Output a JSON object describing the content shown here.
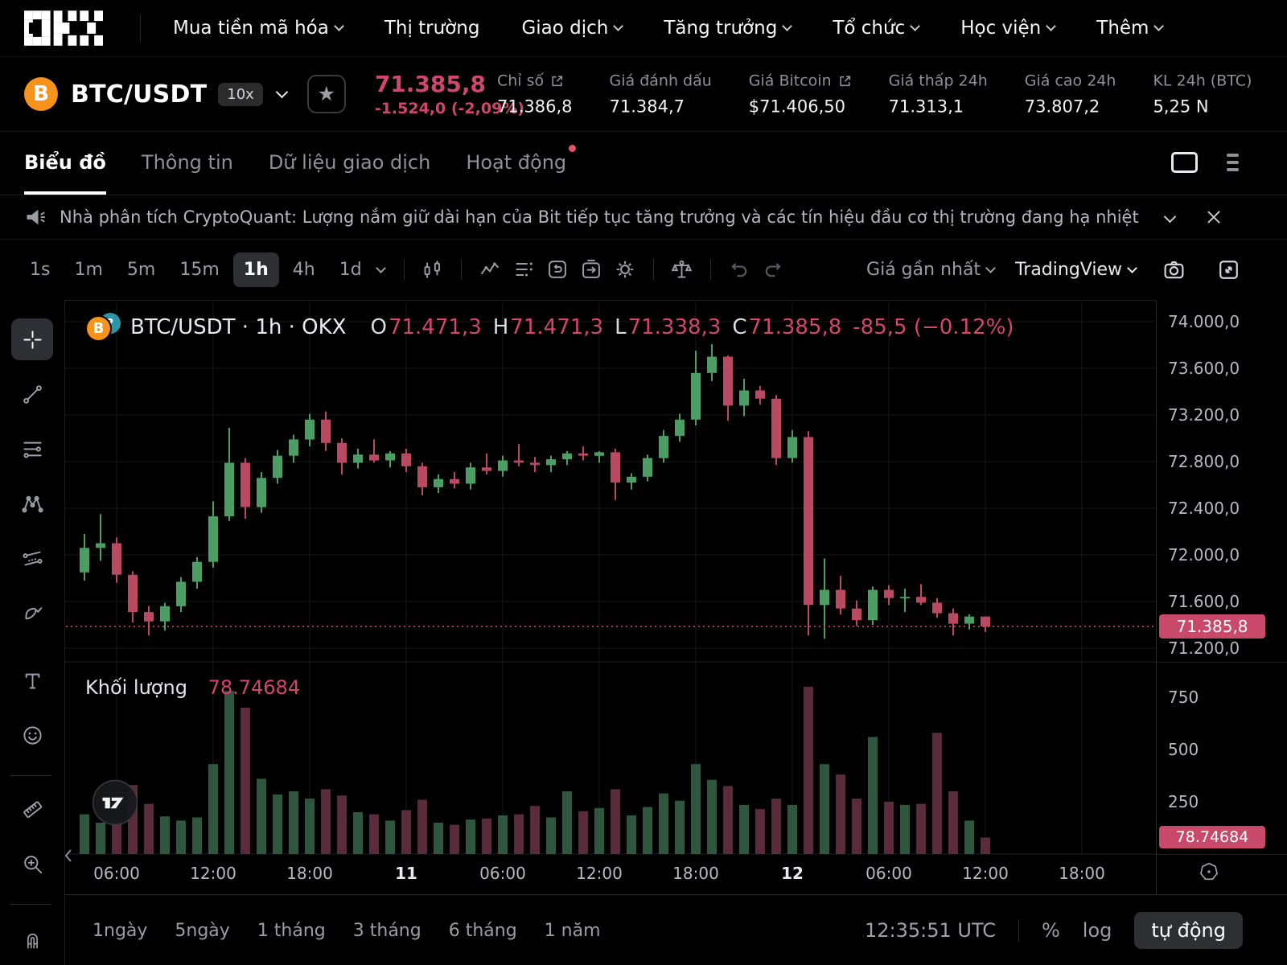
{
  "nav": {
    "items": [
      {
        "label": "Mua tiền mã hóa",
        "chevron": true
      },
      {
        "label": "Thị trường",
        "chevron": false
      },
      {
        "label": "Giao dịch",
        "chevron": true
      },
      {
        "label": "Tăng trưởng",
        "chevron": true
      },
      {
        "label": "Tổ chức",
        "chevron": true
      },
      {
        "label": "Học viện",
        "chevron": true
      },
      {
        "label": "Thêm",
        "chevron": true
      }
    ]
  },
  "ticker": {
    "coin_symbol": "B",
    "pair": "BTC/USDT",
    "leverage": "10x",
    "star": "★",
    "last_price": "71.385,8",
    "change": "-1.524,0 (-2,09%)",
    "stats": [
      {
        "label": "Chỉ số",
        "external": true,
        "value": "71.386,8"
      },
      {
        "label": "Giá đánh dấu",
        "external": false,
        "value": "71.384,7"
      },
      {
        "label": "Giá Bitcoin",
        "external": true,
        "value": "$71.406,50"
      },
      {
        "label": "Giá thấp 24h",
        "external": false,
        "value": "71.313,1"
      },
      {
        "label": "Giá cao 24h",
        "external": false,
        "value": "73.807,2"
      },
      {
        "label": "KL 24h (BTC)",
        "external": false,
        "value": "5,25 N"
      }
    ]
  },
  "tabs": {
    "items": [
      {
        "label": "Biểu đồ",
        "active": true,
        "dot": false
      },
      {
        "label": "Thông tin",
        "active": false,
        "dot": false
      },
      {
        "label": "Dữ liệu giao dịch",
        "active": false,
        "dot": false
      },
      {
        "label": "Hoạt động",
        "active": false,
        "dot": true
      }
    ]
  },
  "announcement": {
    "text": "Nhà phân tích CryptoQuant: Lượng nắm giữ dài hạn của Bit tiếp tục tăng trưởng và các tín hiệu đầu cơ thị trường đang hạ nhiệt"
  },
  "toolbar": {
    "intervals": [
      {
        "label": "1s"
      },
      {
        "label": "1m"
      },
      {
        "label": "5m"
      },
      {
        "label": "15m"
      },
      {
        "label": "1h",
        "active": true
      },
      {
        "label": "4h"
      },
      {
        "label": "1d"
      }
    ],
    "price_mode": "Giá gần nhất",
    "provider": "TradingView"
  },
  "legend": {
    "title": "BTC/USDT · 1h · OKX",
    "o_label": "O",
    "o": "71.471,3",
    "h_label": "H",
    "h": "71.471,3",
    "l_label": "L",
    "l": "71.338,3",
    "c_label": "C",
    "c": "71.385,8",
    "change": "-85,5 (−0.12%)",
    "volume_label": "Khối lượng",
    "volume_value": "78.74684"
  },
  "axis": {
    "last_price_badge": "71.385,8",
    "last_volume_badge": "78.74684"
  },
  "footer": {
    "ranges": [
      "1ngày",
      "5ngày",
      "1 tháng",
      "3 tháng",
      "6 tháng",
      "1 năm"
    ],
    "clock": "12:35:51 UTC",
    "percent": "%",
    "log": "log",
    "auto": "tự động"
  },
  "drawbar": {
    "tools": [
      "crosshair",
      "trend-line",
      "fib-retracement",
      "xabcd-pattern",
      "parallel-channel",
      "brush",
      "text",
      "emoji",
      "divider",
      "ruler",
      "zoom-in",
      "divider",
      "magnet"
    ],
    "active": "crosshair"
  },
  "colors": {
    "up": "#4c9e64",
    "down": "#ba4a61",
    "vol_up": "#2f5740",
    "vol_down": "#5a2b3b",
    "accent_red": "#d2466b",
    "badge_red": "#c9496a",
    "grid": "#15171a",
    "axis_text": "#b6b9c0"
  },
  "chart_data": {
    "type": "candlestick+volume",
    "title": "BTC/USDT · 1h · OKX",
    "pair": "BTC/USDT",
    "interval": "1h",
    "exchange": "OKX",
    "last_price": 71385.8,
    "price_axis": [
      {
        "value": 74000,
        "label": "74.000,0"
      },
      {
        "value": 73600,
        "label": "73.600,0"
      },
      {
        "value": 73200,
        "label": "73.200,0"
      },
      {
        "value": 72800,
        "label": "72.800,0"
      },
      {
        "value": 72400,
        "label": "72.400,0"
      },
      {
        "value": 72000,
        "label": "72.000,0"
      },
      {
        "value": 71600,
        "label": "71.600,0"
      },
      {
        "value": 71200,
        "label": "71.200,0"
      }
    ],
    "volume_axis": [
      {
        "value": 750,
        "label": "750"
      },
      {
        "value": 500,
        "label": "500"
      },
      {
        "value": 250,
        "label": "250"
      }
    ],
    "time_labels": [
      {
        "index": 2,
        "label": "06:00",
        "bold": false
      },
      {
        "index": 8,
        "label": "12:00",
        "bold": false
      },
      {
        "index": 14,
        "label": "18:00",
        "bold": false
      },
      {
        "index": 20,
        "label": "11",
        "bold": true
      },
      {
        "index": 26,
        "label": "06:00",
        "bold": false
      },
      {
        "index": 32,
        "label": "12:00",
        "bold": false
      },
      {
        "index": 38,
        "label": "18:00",
        "bold": false
      },
      {
        "index": 44,
        "label": "12",
        "bold": true
      },
      {
        "index": 50,
        "label": "06:00",
        "bold": false
      },
      {
        "index": 56,
        "label": "12:00",
        "bold": false
      },
      {
        "index": 62,
        "label": "18:00",
        "bold": false
      }
    ],
    "candles_ohlcv": [
      [
        71850,
        72180,
        71780,
        72060,
        190
      ],
      [
        72060,
        72350,
        71950,
        72100,
        150
      ],
      [
        72100,
        72150,
        71760,
        71830,
        170
      ],
      [
        71830,
        71860,
        71420,
        71510,
        330
      ],
      [
        71510,
        71560,
        71310,
        71430,
        240
      ],
      [
        71430,
        71590,
        71350,
        71560,
        180
      ],
      [
        71560,
        71810,
        71510,
        71770,
        160
      ],
      [
        71770,
        71980,
        71710,
        71940,
        175
      ],
      [
        71940,
        72460,
        71890,
        72330,
        430
      ],
      [
        72330,
        73090,
        72290,
        72790,
        780
      ],
      [
        72790,
        72830,
        72310,
        72410,
        700
      ],
      [
        72410,
        72710,
        72360,
        72660,
        360
      ],
      [
        72660,
        72900,
        72610,
        72850,
        285
      ],
      [
        72850,
        73030,
        72790,
        72990,
        300
      ],
      [
        72990,
        73210,
        72930,
        73160,
        265
      ],
      [
        73160,
        73230,
        72890,
        72960,
        310
      ],
      [
        72960,
        73000,
        72690,
        72790,
        280
      ],
      [
        72790,
        72910,
        72740,
        72860,
        200
      ],
      [
        72860,
        72990,
        72790,
        72810,
        190
      ],
      [
        72810,
        72890,
        72750,
        72870,
        160
      ],
      [
        72870,
        72910,
        72710,
        72760,
        210
      ],
      [
        72760,
        72790,
        72510,
        72580,
        260
      ],
      [
        72580,
        72690,
        72530,
        72650,
        150
      ],
      [
        72650,
        72710,
        72570,
        72610,
        140
      ],
      [
        72610,
        72790,
        72560,
        72750,
        165
      ],
      [
        72750,
        72870,
        72690,
        72720,
        170
      ],
      [
        72720,
        72850,
        72670,
        72810,
        185
      ],
      [
        72810,
        72950,
        72760,
        72790,
        190
      ],
      [
        72790,
        72840,
        72710,
        72770,
        230
      ],
      [
        72770,
        72850,
        72710,
        72820,
        175
      ],
      [
        72820,
        72890,
        72770,
        72870,
        300
      ],
      [
        72870,
        72930,
        72810,
        72850,
        205
      ],
      [
        72850,
        72890,
        72790,
        72880,
        220
      ],
      [
        72880,
        72910,
        72470,
        72620,
        310
      ],
      [
        72620,
        72700,
        72560,
        72670,
        185
      ],
      [
        72670,
        72860,
        72630,
        72830,
        225
      ],
      [
        72830,
        73070,
        72790,
        73020,
        290
      ],
      [
        73020,
        73210,
        72970,
        73160,
        255
      ],
      [
        73160,
        73750,
        73110,
        73560,
        430
      ],
      [
        73560,
        73807,
        73490,
        73700,
        355
      ],
      [
        73700,
        73710,
        73150,
        73280,
        325
      ],
      [
        73280,
        73510,
        73190,
        73410,
        235
      ],
      [
        73410,
        73450,
        73290,
        73340,
        215
      ],
      [
        73340,
        73370,
        72770,
        72830,
        265
      ],
      [
        72830,
        73070,
        72790,
        73010,
        235
      ],
      [
        73010,
        73060,
        71310,
        71570,
        800
      ],
      [
        71570,
        71970,
        71280,
        71700,
        430
      ],
      [
        71700,
        71820,
        71490,
        71540,
        380
      ],
      [
        71540,
        71610,
        71390,
        71440,
        265
      ],
      [
        71440,
        71730,
        71400,
        71700,
        560
      ],
      [
        71700,
        71740,
        71570,
        71630,
        250
      ],
      [
        71630,
        71710,
        71510,
        71640,
        235
      ],
      [
        71640,
        71750,
        71570,
        71590,
        240
      ],
      [
        71590,
        71630,
        71460,
        71500,
        580
      ],
      [
        71500,
        71540,
        71310,
        71410,
        300
      ],
      [
        71410,
        71490,
        71360,
        71471,
        160
      ],
      [
        71471.3,
        71471.3,
        71338.3,
        71385.8,
        78.74684
      ]
    ]
  }
}
